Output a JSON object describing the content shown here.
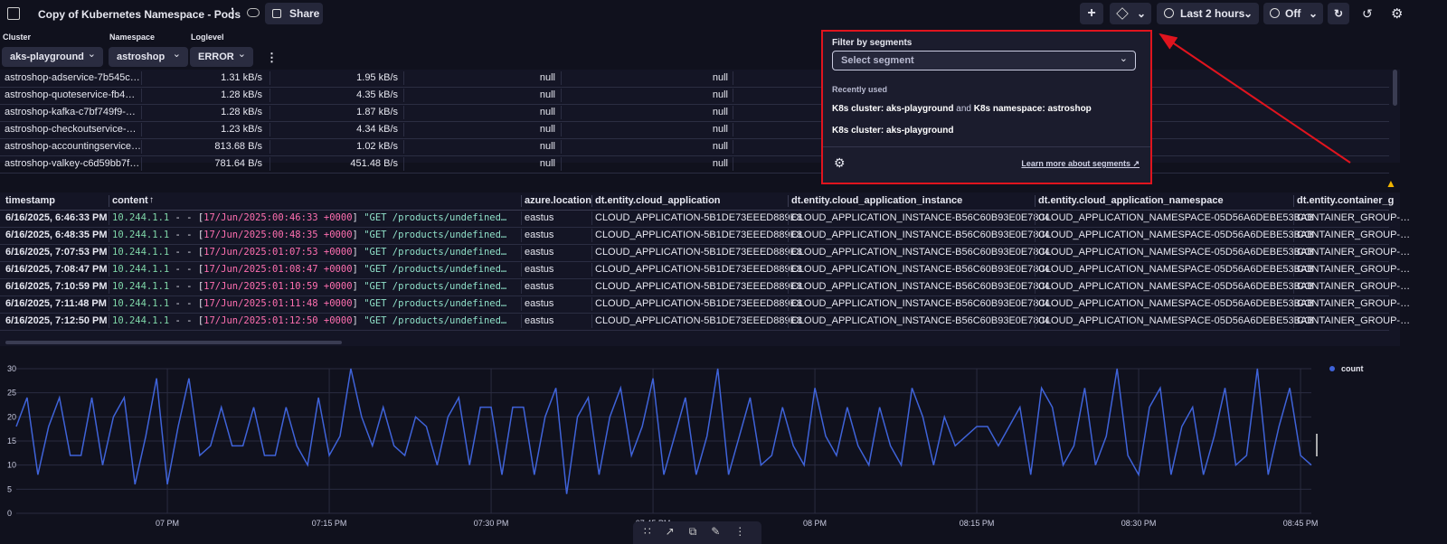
{
  "header": {
    "title": "Copy of Kubernetes Namespace - Pods",
    "share": "Share",
    "timeframe": "Last 2 hours",
    "refresh": "Off"
  },
  "filters": [
    {
      "label": "Cluster",
      "value": "aks-playground"
    },
    {
      "label": "Namespace",
      "value": "astroshop"
    },
    {
      "label": "Loglevel",
      "value": "ERROR"
    }
  ],
  "pods_table": {
    "rows": [
      [
        "astroshop-adservice-7b545c…",
        "1.31 kB/s",
        "1.95 kB/s",
        "null",
        "null"
      ],
      [
        "astroshop-quoteservice-fb4…",
        "1.28 kB/s",
        "4.35 kB/s",
        "null",
        "null"
      ],
      [
        "astroshop-kafka-c7bf749f9-…",
        "1.28 kB/s",
        "1.87 kB/s",
        "null",
        "null"
      ],
      [
        "astroshop-checkoutservice-…",
        "1.23 kB/s",
        "4.34 kB/s",
        "null",
        "null"
      ],
      [
        "astroshop-accountingservice…",
        "813.68 B/s",
        "1.02 kB/s",
        "null",
        "null"
      ],
      [
        "astroshop-valkey-c6d59bb7f…",
        "781.64 B/s",
        "451.48 B/s",
        "null",
        "null"
      ]
    ]
  },
  "segments_popup": {
    "title": "Filter by segments",
    "placeholder": "Select segment",
    "recent_label": "Recently used",
    "recent": [
      [
        "K8s cluster: aks-playground",
        " and ",
        "K8s namespace: astroshop"
      ],
      [
        "K8s cluster: aks-playground"
      ]
    ],
    "link": "Learn more about segments"
  },
  "logs_table": {
    "columns": [
      "timestamp",
      "content",
      "azure.location",
      "dt.entity.cloud_application",
      "dt.entity.cloud_application_instance",
      "dt.entity.cloud_application_namespace",
      "dt.entity.container_g"
    ],
    "rows": [
      [
        "6/16/2025, 6:46:33 PM",
        [
          "10.244.1.1",
          " - - [",
          "17/Jun/2025:00:46:33 +0000",
          "] ",
          "\"GET /products/undefined…"
        ],
        "eastus",
        "CLOUD_APPLICATION-5B1DE73EEED889E8",
        "CLOUD_APPLICATION_INSTANCE-B56C60B93E0E7804",
        "CLOUD_APPLICATION_NAMESPACE-05D56A6DEBE53BAB",
        "CONTAINER_GROUP-…"
      ],
      [
        "6/16/2025, 6:48:35 PM",
        [
          "10.244.1.1",
          " - - [",
          "17/Jun/2025:00:48:35 +0000",
          "] ",
          "\"GET /products/undefined…"
        ],
        "eastus",
        "CLOUD_APPLICATION-5B1DE73EEED889E8",
        "CLOUD_APPLICATION_INSTANCE-B56C60B93E0E7804",
        "CLOUD_APPLICATION_NAMESPACE-05D56A6DEBE53BAB",
        "CONTAINER_GROUP-…"
      ],
      [
        "6/16/2025, 7:07:53 PM",
        [
          "10.244.1.1",
          " - - [",
          "17/Jun/2025:01:07:53 +0000",
          "] ",
          "\"GET /products/undefined…"
        ],
        "eastus",
        "CLOUD_APPLICATION-5B1DE73EEED889E8",
        "CLOUD_APPLICATION_INSTANCE-B56C60B93E0E7804",
        "CLOUD_APPLICATION_NAMESPACE-05D56A6DEBE53BAB",
        "CONTAINER_GROUP-…"
      ],
      [
        "6/16/2025, 7:08:47 PM",
        [
          "10.244.1.1",
          " - - [",
          "17/Jun/2025:01:08:47 +0000",
          "] ",
          "\"GET /products/undefined…"
        ],
        "eastus",
        "CLOUD_APPLICATION-5B1DE73EEED889E8",
        "CLOUD_APPLICATION_INSTANCE-B56C60B93E0E7804",
        "CLOUD_APPLICATION_NAMESPACE-05D56A6DEBE53BAB",
        "CONTAINER_GROUP-…"
      ],
      [
        "6/16/2025, 7:10:59 PM",
        [
          "10.244.1.1",
          " - - [",
          "17/Jun/2025:01:10:59 +0000",
          "] ",
          "\"GET /products/undefined…"
        ],
        "eastus",
        "CLOUD_APPLICATION-5B1DE73EEED889E8",
        "CLOUD_APPLICATION_INSTANCE-B56C60B93E0E7804",
        "CLOUD_APPLICATION_NAMESPACE-05D56A6DEBE53BAB",
        "CONTAINER_GROUP-…"
      ],
      [
        "6/16/2025, 7:11:48 PM",
        [
          "10.244.1.1",
          " - - [",
          "17/Jun/2025:01:11:48 +0000",
          "] ",
          "\"GET /products/undefined…"
        ],
        "eastus",
        "CLOUD_APPLICATION-5B1DE73EEED889E8",
        "CLOUD_APPLICATION_INSTANCE-B56C60B93E0E7804",
        "CLOUD_APPLICATION_NAMESPACE-05D56A6DEBE53BAB",
        "CONTAINER_GROUP-…"
      ],
      [
        "6/16/2025, 7:12:50 PM",
        [
          "10.244.1.1",
          " - - [",
          "17/Jun/2025:01:12:50 +0000",
          "] ",
          "\"GET /products/undefined…"
        ],
        "eastus",
        "CLOUD_APPLICATION-5B1DE73EEED889E8",
        "CLOUD_APPLICATION_INSTANCE-B56C60B93E0E7804",
        "CLOUD_APPLICATION_NAMESPACE-05D56A6DEBE53BAB",
        "CONTAINER_GROUP-…"
      ]
    ]
  },
  "chart_data": {
    "type": "line",
    "xlim": [
      0,
      120
    ],
    "xticks": [
      {
        "value": 14,
        "label": "07 PM"
      },
      {
        "value": 29,
        "label": "07:15 PM"
      },
      {
        "value": 44,
        "label": "07:30 PM"
      },
      {
        "value": 59,
        "label": "07:45 PM"
      },
      {
        "value": 74,
        "label": "08 PM"
      },
      {
        "value": 89,
        "label": "08:15 PM"
      },
      {
        "value": 104,
        "label": "08:30 PM"
      },
      {
        "value": 119,
        "label": "08:45 PM"
      }
    ],
    "ylim": [
      0,
      30
    ],
    "yticks": [
      0,
      5,
      10,
      15,
      20,
      25,
      30
    ],
    "grid": true,
    "series": [
      {
        "name": "count",
        "color": "#3f63d9",
        "values": [
          18,
          24,
          8,
          18,
          24,
          12,
          12,
          24,
          10,
          20,
          24,
          6,
          16,
          28,
          6,
          18,
          28,
          12,
          14,
          22,
          14,
          14,
          22,
          12,
          12,
          22,
          14,
          10,
          24,
          12,
          16,
          30,
          20,
          14,
          22,
          14,
          12,
          20,
          18,
          10,
          20,
          24,
          10,
          22,
          22,
          8,
          22,
          22,
          8,
          20,
          26,
          4,
          20,
          24,
          8,
          20,
          26,
          12,
          18,
          28,
          8,
          16,
          24,
          8,
          16,
          30,
          8,
          16,
          24,
          10,
          12,
          22,
          14,
          10,
          26,
          16,
          12,
          22,
          14,
          10,
          22,
          14,
          10,
          26,
          20,
          10,
          20,
          14,
          16,
          18,
          18,
          14,
          18,
          22,
          8,
          26,
          22,
          10,
          14,
          26,
          10,
          16,
          30,
          12,
          8,
          22,
          26,
          8,
          18,
          22,
          8,
          16,
          26,
          10,
          12,
          30,
          8,
          18,
          26,
          12,
          10
        ]
      }
    ]
  }
}
